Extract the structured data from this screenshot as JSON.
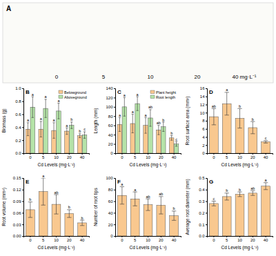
{
  "photo_panel": {
    "panel": "A",
    "labels": [
      "0",
      "5",
      "10",
      "20",
      "40 mg·L⁻¹"
    ]
  },
  "chart_data": [
    {
      "panel": "B",
      "type": "bar",
      "x_label": "Cd Levels (mg·L⁻¹)",
      "y_label": "Biomass (g)",
      "categories": [
        "0",
        "5",
        "10",
        "20",
        "40"
      ],
      "series": [
        {
          "name": "Belowground",
          "color": "#f9c88f",
          "values": [
            0.37,
            0.37,
            0.35,
            0.34,
            0.27
          ],
          "errors": [
            0.1,
            0.12,
            0.12,
            0.05,
            0.03
          ],
          "letters": [
            "a",
            "a",
            "a",
            "a",
            "b"
          ]
        },
        {
          "name": "Aboveground",
          "color": "#b5e3a8",
          "values": [
            0.71,
            0.69,
            0.65,
            0.43,
            0.28
          ],
          "errors": [
            0.16,
            0.14,
            0.12,
            0.05,
            0.05
          ],
          "letters": [
            "a",
            "a",
            "a",
            "b",
            "c"
          ]
        }
      ],
      "ylim": [
        0,
        1
      ],
      "yticks": [
        {
          "value": 0,
          "label": "0.0"
        },
        {
          "value": 0.2,
          "label": "0.2"
        },
        {
          "value": 0.4,
          "label": "0.4"
        },
        {
          "value": 0.6,
          "label": "0.6"
        },
        {
          "value": 0.8,
          "label": "0.8"
        },
        {
          "value": 1,
          "label": "1.0"
        }
      ],
      "legend": "top-right"
    },
    {
      "panel": "C",
      "type": "bar",
      "x_label": "Cd Levels (mg·L⁻¹)",
      "y_label": "Length (mm)",
      "categories": [
        "0",
        "5",
        "10",
        "20",
        "40"
      ],
      "series": [
        {
          "name": "Plant height",
          "color": "#f9c88f",
          "values": [
            62,
            64,
            60,
            50,
            33
          ],
          "errors": [
            15,
            20,
            17,
            10,
            5
          ],
          "letters": [
            "a",
            "a",
            "a",
            "ab",
            "b"
          ]
        },
        {
          "name": "Root length",
          "color": "#b5e3a8",
          "values": [
            100,
            107,
            76,
            57,
            20
          ],
          "errors": [
            20,
            15,
            18,
            10,
            5
          ],
          "letters": [
            "a",
            "a",
            "ab",
            "b",
            "c"
          ]
        }
      ],
      "ylim": [
        0,
        140
      ],
      "yticks": [
        0,
        20,
        40,
        60,
        80,
        100,
        120,
        140
      ],
      "legend": "top-right"
    },
    {
      "panel": "D",
      "type": "bar",
      "x_label": "Cd Levels (mg·L⁻¹)",
      "y_label": "Root surface area (mm²)",
      "categories": [
        "0",
        "5",
        "10",
        "20",
        "40"
      ],
      "color": "#f9c88f",
      "values": [
        9.0,
        12.2,
        8.6,
        6.3,
        2.8
      ],
      "errors": [
        2,
        2.8,
        2.4,
        1.5,
        0.3
      ],
      "letters": [
        "ab",
        "a",
        "b",
        "b",
        "c"
      ],
      "ylim": [
        0,
        16
      ],
      "yticks": [
        0,
        2,
        4,
        6,
        8,
        10,
        12,
        14,
        16
      ]
    },
    {
      "panel": "E",
      "type": "bar",
      "x_label": "Cd Levels (mg·L⁻¹)",
      "y_label": "Root volume (mm³)",
      "categories": [
        "0",
        "5",
        "10",
        "20",
        "40"
      ],
      "color": "#f9c88f",
      "values": [
        0.068,
        0.115,
        0.082,
        0.058,
        0.034
      ],
      "errors": [
        0.02,
        0.035,
        0.025,
        0.01,
        0.007
      ],
      "letters": [
        "b",
        "a",
        "ab",
        "b",
        "b"
      ],
      "ylim": [
        0,
        0.15
      ],
      "yticks": [
        {
          "value": 0,
          "label": "0.00"
        },
        {
          "value": 0.03,
          "label": "0.03"
        },
        {
          "value": 0.06,
          "label": "0.06"
        },
        {
          "value": 0.09,
          "label": "0.09"
        },
        {
          "value": 0.12,
          "label": "0.12"
        },
        {
          "value": 0.15,
          "label": "0.15"
        }
      ]
    },
    {
      "panel": "F",
      "type": "bar",
      "x_label": "Cd Levels (mg·L⁻¹)",
      "y_label": "Number of root tips",
      "categories": [
        "0",
        "5",
        "10",
        "20",
        "40"
      ],
      "color": "#f9c88f",
      "values": [
        70,
        64,
        54,
        53,
        35
      ],
      "errors": [
        15,
        12,
        10,
        15,
        8
      ],
      "letters": [
        "a",
        "a",
        "ab",
        "ab",
        "b"
      ],
      "ylim": [
        0,
        100
      ],
      "yticks": [
        0,
        20,
        40,
        60,
        80,
        100
      ]
    },
    {
      "panel": "G",
      "type": "bar",
      "x_label": "Cd Levels (mg·L⁻¹)",
      "y_label": "Average root diameter (mm)",
      "categories": [
        "0",
        "5",
        "10",
        "20",
        "40"
      ],
      "color": "#f9c88f",
      "values": [
        0.28,
        0.34,
        0.36,
        0.37,
        0.43
      ],
      "errors": [
        0.02,
        0.03,
        0.02,
        0.02,
        0.03
      ],
      "letters": [
        "c",
        "b",
        "b",
        "ab",
        "a"
      ],
      "ylim": [
        0,
        0.5
      ],
      "yticks": [
        {
          "value": 0,
          "label": "0.0"
        },
        {
          "value": 0.1,
          "label": "0.1"
        },
        {
          "value": 0.2,
          "label": "0.2"
        },
        {
          "value": 0.3,
          "label": "0.3"
        },
        {
          "value": 0.4,
          "label": "0.4"
        },
        {
          "value": 0.5,
          "label": "0.5"
        }
      ]
    }
  ]
}
